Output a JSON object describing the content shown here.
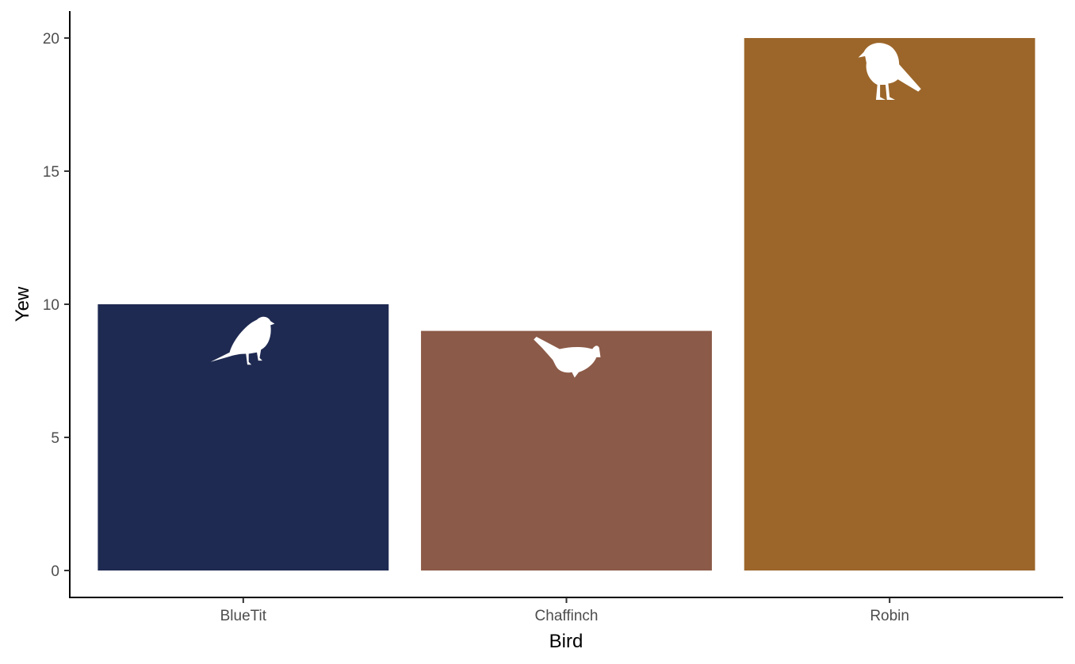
{
  "chart_data": {
    "type": "bar",
    "categories": [
      "BlueTit",
      "Chaffinch",
      "Robin"
    ],
    "values": [
      10,
      9,
      20
    ],
    "colors": [
      "#1f2a52",
      "#8c5a48",
      "#9c662a"
    ],
    "icons": [
      "blue-tit-silhouette-icon",
      "chaffinch-silhouette-icon",
      "robin-silhouette-icon"
    ],
    "xlabel": "Bird",
    "ylabel": "Yew",
    "ylim": [
      0,
      20
    ],
    "yticks": [
      0,
      5,
      10,
      15,
      20
    ],
    "grid": false,
    "legend": "none"
  }
}
